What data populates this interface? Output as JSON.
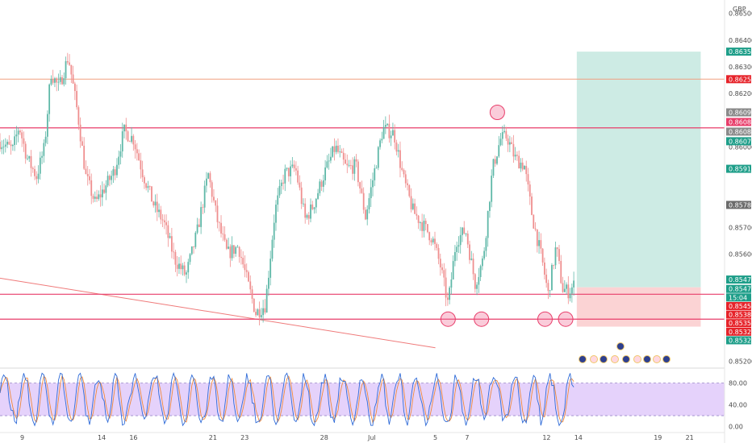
{
  "chart_data": {
    "type": "line",
    "subtype": "candlestick",
    "currency_label": "GBP",
    "ylim": [
      0.8518,
      0.8655
    ],
    "y_ticks": [
      "0.86500",
      "0.86400",
      "0.86300",
      "0.86200",
      "0.86000",
      "0.85700",
      "0.85600",
      "0.85200"
    ],
    "x_ticks": [
      {
        "label": "9",
        "day": 0
      },
      {
        "label": "14",
        "day": 5
      },
      {
        "label": "16",
        "day": 7
      },
      {
        "label": "21",
        "day": 12
      },
      {
        "label": "23",
        "day": 14
      },
      {
        "label": "28",
        "day": 19
      },
      {
        "label": "Jul",
        "day": 22
      },
      {
        "label": "5",
        "day": 26
      },
      {
        "label": "7",
        "day": 28
      },
      {
        "label": "12",
        "day": 33
      },
      {
        "label": "14",
        "day": 35
      },
      {
        "label": "19",
        "day": 40
      },
      {
        "label": "21",
        "day": 42
      }
    ],
    "xlim_days": [
      -1.4,
      44.2
    ],
    "price_path": [
      [
        -1.4,
        0.8602
      ],
      [
        -0.6,
        0.8599
      ],
      [
        -0.2,
        0.8608
      ],
      [
        0.3,
        0.8596
      ],
      [
        0.9,
        0.8589
      ],
      [
        1.4,
        0.86
      ],
      [
        1.8,
        0.8628
      ],
      [
        2.3,
        0.8622
      ],
      [
        2.9,
        0.8634
      ],
      [
        3.5,
        0.8612
      ],
      [
        4.0,
        0.8589
      ],
      [
        4.6,
        0.8579
      ],
      [
        5.2,
        0.8585
      ],
      [
        5.8,
        0.8591
      ],
      [
        6.4,
        0.8606
      ],
      [
        7.0,
        0.8603
      ],
      [
        7.6,
        0.859
      ],
      [
        8.3,
        0.8578
      ],
      [
        8.9,
        0.8572
      ],
      [
        9.6,
        0.8558
      ],
      [
        10.3,
        0.8552
      ],
      [
        11.0,
        0.8568
      ],
      [
        11.7,
        0.859
      ],
      [
        12.3,
        0.8572
      ],
      [
        12.9,
        0.856
      ],
      [
        13.6,
        0.8563
      ],
      [
        14.2,
        0.8549
      ],
      [
        14.7,
        0.8538
      ],
      [
        15.3,
        0.8541
      ],
      [
        15.9,
        0.8576
      ],
      [
        16.5,
        0.859
      ],
      [
        17.2,
        0.8592
      ],
      [
        17.8,
        0.8573
      ],
      [
        18.3,
        0.8578
      ],
      [
        19.0,
        0.859
      ],
      [
        19.7,
        0.86
      ],
      [
        20.4,
        0.8592
      ],
      [
        21.0,
        0.8593
      ],
      [
        21.6,
        0.8574
      ],
      [
        22.2,
        0.8592
      ],
      [
        22.7,
        0.8607
      ],
      [
        23.4,
        0.8605
      ],
      [
        24.0,
        0.8588
      ],
      [
        24.6,
        0.8576
      ],
      [
        25.2,
        0.8571
      ],
      [
        25.8,
        0.8566
      ],
      [
        26.3,
        0.8556
      ],
      [
        26.8,
        0.8541
      ],
      [
        27.3,
        0.8565
      ],
      [
        27.9,
        0.8569
      ],
      [
        28.5,
        0.8549
      ],
      [
        29.0,
        0.8558
      ],
      [
        29.6,
        0.8592
      ],
      [
        30.1,
        0.8603
      ],
      [
        30.5,
        0.8604
      ],
      [
        31.0,
        0.8596
      ],
      [
        31.6,
        0.8593
      ],
      [
        32.1,
        0.8574
      ],
      [
        32.7,
        0.8558
      ],
      [
        33.1,
        0.8545
      ],
      [
        33.6,
        0.8563
      ],
      [
        34.0,
        0.8547
      ],
      [
        34.4,
        0.8546
      ],
      [
        34.8,
        0.8549
      ]
    ],
    "horizontal_lines": [
      {
        "price": 0.86254,
        "color": "#f0a080",
        "width": 1
      },
      {
        "price": 0.86072,
        "color": "#e83d6a",
        "width": 1.2
      },
      {
        "price": 0.8545,
        "color": "#e83d6a",
        "width": 1.2
      },
      {
        "price": 0.85357,
        "color": "#e83d6a",
        "width": 1.2
      }
    ],
    "trend_line": {
      "from": [
        -1.4,
        0.8551
      ],
      "to": [
        26.0,
        0.8525
      ],
      "color": "#ef7a7a"
    },
    "position_box": {
      "from_day": 34.9,
      "to_day": 42.7,
      "entry": 0.85476,
      "target": 0.86357,
      "stop": 0.85329,
      "profit_color": "#cdebe4",
      "loss_color": "#fbd3d4"
    },
    "circle_markers": [
      {
        "day": 29.9,
        "price": 0.8613
      },
      {
        "day": 26.8,
        "price": 0.85357
      },
      {
        "day": 28.9,
        "price": 0.85357
      },
      {
        "day": 32.9,
        "price": 0.85357
      },
      {
        "day": 34.2,
        "price": 0.85357
      }
    ],
    "price_badges": [
      {
        "label": "0.86357",
        "price": 0.86357,
        "color": "#1e9e89"
      },
      {
        "label": "0.86254",
        "price": 0.86254,
        "color": "#e6232a"
      },
      {
        "label": "0.86090",
        "price": 0.8613,
        "color": "#8a8a8a"
      },
      {
        "label": "0.86086",
        "price": 0.86094,
        "color": "#e83d6a"
      },
      {
        "label": "0.86083",
        "price": 0.86058,
        "color": "#8a8a8a"
      },
      {
        "label": "0.86072",
        "price": 0.86022,
        "color": "#1e9e89"
      },
      {
        "label": "0.85919",
        "price": 0.85919,
        "color": "#1e9e89"
      },
      {
        "label": "0.85784",
        "price": 0.85784,
        "color": "#6b6b6b"
      },
      {
        "label": "0.85479",
        "price": 0.85505,
        "color": "#1e9e89"
      },
      {
        "label": "0.85476",
        "price": 0.8547,
        "color": "#1e9e89"
      },
      {
        "label": "15:04",
        "price": 0.85438,
        "color": "#1e9e89"
      },
      {
        "label": "0.85450",
        "price": 0.85406,
        "color": "#e6232a"
      },
      {
        "label": "0.85382",
        "price": 0.85374,
        "color": "#e6232a"
      },
      {
        "label": "0.85357",
        "price": 0.85342,
        "color": "#e6232a"
      },
      {
        "label": "0.85329",
        "price": 0.8531,
        "color": "#e6232a"
      },
      {
        "label": "0.85322",
        "price": 0.85278,
        "color": "#1e9e89"
      }
    ],
    "oscillator": {
      "ylim": [
        -8,
        100
      ],
      "y_ticks": [
        "80.00",
        "40.00",
        "0.00"
      ],
      "band": [
        20,
        80
      ],
      "band_color": "#e5d2fb",
      "k_color": "#2f6bd8",
      "d_color": "#f08a3c"
    }
  }
}
